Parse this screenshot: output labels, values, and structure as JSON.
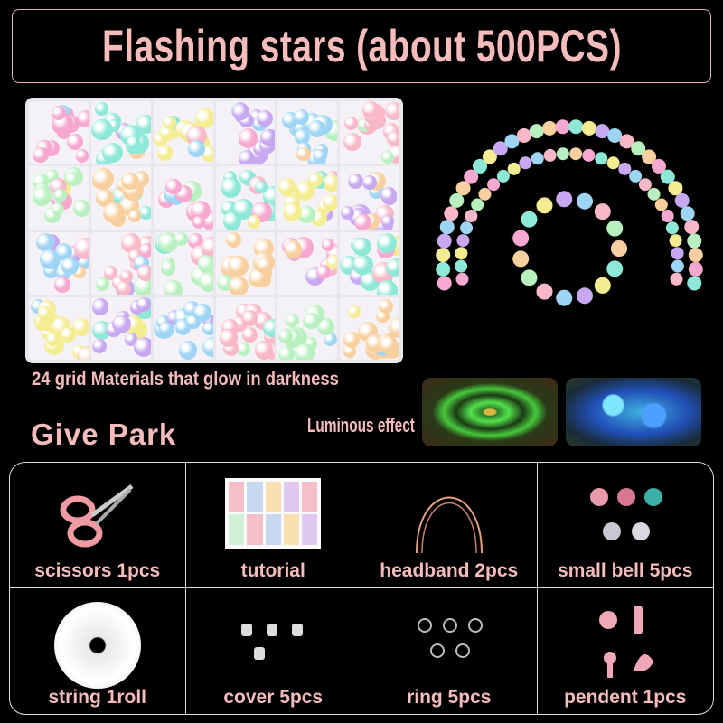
{
  "title": "Flashing stars (about 500PCS)",
  "bead_box_caption": "24 grid  Materials that glow in darkness",
  "luminous_label": "Luminous effect",
  "section_title": "Give Park",
  "colors": {
    "text": "#f6bcbc",
    "background": "#000000",
    "border": "#dddddd"
  },
  "items": [
    {
      "label": "scissors 1pcs",
      "icon": "scissors-icon"
    },
    {
      "label": "tutorial",
      "icon": "tutorial-sheet"
    },
    {
      "label": "headband 2pcs",
      "icon": "headband-icon"
    },
    {
      "label": "small bell 5pcs",
      "icon": "bell-icon"
    },
    {
      "label": "string 1roll",
      "icon": "string-roll-icon"
    },
    {
      "label": "cover 5pcs",
      "icon": "cover-icon"
    },
    {
      "label": "ring 5pcs",
      "icon": "ring-icon"
    },
    {
      "label": "pendent 1pcs",
      "icon": "pendant-icon"
    }
  ]
}
